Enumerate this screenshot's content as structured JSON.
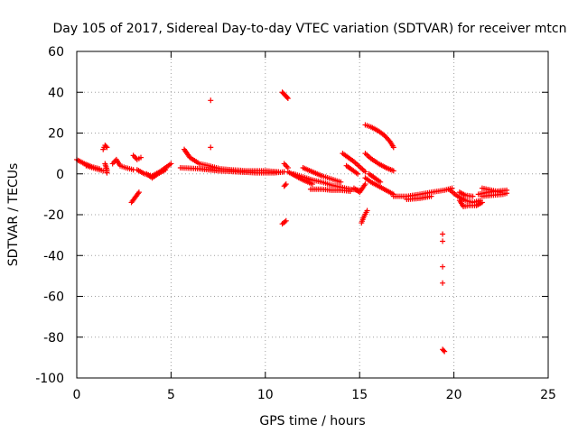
{
  "chart_data": {
    "type": "scatter",
    "title": "Day 105 of 2017, Sidereal Day-to-day VTEC variation (SDTVAR) for receiver mtcn",
    "xlabel": "GPS time / hours",
    "ylabel": "SDTVAR / TECUs",
    "xlim": [
      0,
      25
    ],
    "ylim": [
      -100,
      60
    ],
    "xticks": [
      0,
      5,
      10,
      15,
      20,
      25
    ],
    "yticks": [
      -100,
      -80,
      -60,
      -40,
      -20,
      0,
      20,
      40,
      60
    ],
    "grid": true,
    "marker": "+",
    "series": [
      {
        "name": "SDTVAR",
        "color": "#ff0000",
        "segments": [
          [
            [
              0.0,
              7
            ],
            [
              0.4,
              5
            ],
            [
              0.8,
              3.5
            ],
            [
              1.2,
              2.5
            ]
          ],
          [
            [
              0.5,
              4
            ],
            [
              1.0,
              2.5
            ],
            [
              1.4,
              1.5
            ]
          ],
          [
            [
              1.4,
              12
            ],
            [
              1.5,
              14
            ],
            [
              1.6,
              13
            ]
          ],
          [
            [
              1.5,
              5
            ],
            [
              1.6,
              2
            ],
            [
              1.6,
              0.5
            ]
          ],
          [
            [
              1.9,
              5
            ],
            [
              2.1,
              7
            ],
            [
              2.3,
              4
            ],
            [
              2.6,
              3
            ],
            [
              3.0,
              2
            ]
          ],
          [
            [
              2.9,
              -14
            ],
            [
              3.1,
              -11.5
            ],
            [
              3.3,
              -9
            ]
          ],
          [
            [
              3.0,
              9
            ],
            [
              3.2,
              7
            ],
            [
              3.4,
              8
            ]
          ],
          [
            [
              3.2,
              2
            ],
            [
              3.6,
              0
            ],
            [
              4.0,
              -1
            ],
            [
              4.4,
              1
            ],
            [
              4.7,
              3
            ],
            [
              5.0,
              5
            ]
          ],
          [
            [
              3.7,
              0
            ],
            [
              4.0,
              -2
            ],
            [
              4.3,
              0
            ],
            [
              4.7,
              2
            ]
          ],
          [
            [
              5.7,
              12
            ],
            [
              6.0,
              8
            ],
            [
              6.5,
              5
            ],
            [
              7.0,
              4
            ],
            [
              7.6,
              2.5
            ],
            [
              8.2,
              2
            ],
            [
              9.0,
              1.5
            ],
            [
              10.0,
              1.5
            ],
            [
              10.7,
              1
            ]
          ],
          [
            [
              5.5,
              3
            ],
            [
              6.5,
              2.5
            ],
            [
              7.5,
              1.5
            ],
            [
              8.5,
              1
            ],
            [
              9.5,
              0.5
            ],
            [
              10.5,
              0.5
            ],
            [
              11.0,
              1
            ]
          ],
          [
            [
              7.1,
              13
            ]
          ],
          [
            [
              7.1,
              36
            ]
          ],
          [
            [
              10.9,
              40
            ],
            [
              11.0,
              39
            ],
            [
              11.1,
              38
            ],
            [
              11.2,
              37
            ]
          ],
          [
            [
              10.9,
              -24.5
            ],
            [
              11.1,
              -23
            ]
          ],
          [
            [
              11.0,
              -6
            ],
            [
              11.1,
              -5
            ]
          ],
          [
            [
              11.0,
              5
            ],
            [
              11.2,
              3
            ]
          ],
          [
            [
              11.2,
              1
            ],
            [
              11.6,
              -1
            ],
            [
              12.0,
              -3
            ],
            [
              12.5,
              -5
            ]
          ],
          [
            [
              11.5,
              0
            ],
            [
              12.0,
              -1.5
            ],
            [
              12.5,
              -3
            ],
            [
              13.0,
              -4
            ],
            [
              13.5,
              -5.5
            ],
            [
              14.0,
              -6.5
            ],
            [
              14.5,
              -7.5
            ],
            [
              15.0,
              -8
            ]
          ],
          [
            [
              12.0,
              3
            ],
            [
              12.5,
              1
            ],
            [
              13.0,
              -1
            ],
            [
              13.5,
              -2.5
            ],
            [
              14.0,
              -4
            ]
          ],
          [
            [
              12.4,
              -7.5
            ],
            [
              13.0,
              -7.5
            ],
            [
              13.5,
              -8
            ],
            [
              14.0,
              -8
            ],
            [
              14.5,
              -8.5
            ]
          ],
          [
            [
              14.1,
              10
            ],
            [
              14.4,
              8
            ],
            [
              14.7,
              6
            ],
            [
              15.0,
              3.5
            ],
            [
              15.3,
              1
            ]
          ],
          [
            [
              14.3,
              4
            ],
            [
              14.6,
              2
            ],
            [
              14.9,
              0
            ]
          ],
          [
            [
              14.7,
              -7
            ],
            [
              15.0,
              -9
            ],
            [
              15.3,
              -5
            ]
          ],
          [
            [
              15.1,
              -24
            ],
            [
              15.2,
              -21.5
            ],
            [
              15.4,
              -18
            ]
          ],
          [
            [
              15.3,
              10
            ],
            [
              15.6,
              7.5
            ],
            [
              16.0,
              5
            ],
            [
              16.4,
              3
            ],
            [
              16.8,
              1.5
            ]
          ],
          [
            [
              15.3,
              -2
            ],
            [
              15.6,
              -4
            ],
            [
              16.0,
              -6
            ],
            [
              16.4,
              -8
            ],
            [
              16.8,
              -10
            ]
          ],
          [
            [
              15.5,
              0
            ],
            [
              15.8,
              -2
            ],
            [
              16.1,
              -4
            ]
          ],
          [
            [
              15.3,
              24
            ],
            [
              15.6,
              23
            ],
            [
              16.0,
              21
            ],
            [
              16.3,
              19
            ],
            [
              16.6,
              16
            ],
            [
              16.8,
              13
            ]
          ],
          [
            [
              16.8,
              -11
            ],
            [
              17.5,
              -11
            ],
            [
              18.2,
              -10
            ],
            [
              18.8,
              -9
            ],
            [
              19.5,
              -8
            ],
            [
              19.9,
              -7
            ]
          ],
          [
            [
              17.5,
              -12.5
            ],
            [
              18.2,
              -12
            ],
            [
              18.8,
              -11
            ]
          ],
          [
            [
              19.4,
              -29.5
            ]
          ],
          [
            [
              19.4,
              -33
            ]
          ],
          [
            [
              19.4,
              -45.5
            ]
          ],
          [
            [
              19.4,
              -53.5
            ]
          ],
          [
            [
              19.4,
              -86
            ],
            [
              19.5,
              -87
            ]
          ],
          [
            [
              19.8,
              -8
            ],
            [
              20.2,
              -11
            ],
            [
              20.6,
              -13
            ],
            [
              21.0,
              -14
            ],
            [
              21.4,
              -13
            ]
          ],
          [
            [
              20.3,
              -13
            ],
            [
              20.5,
              -16
            ],
            [
              20.8,
              -15.5
            ],
            [
              21.2,
              -15.5
            ],
            [
              21.5,
              -14
            ]
          ],
          [
            [
              20.3,
              -9
            ],
            [
              20.6,
              -10.5
            ],
            [
              21.0,
              -11
            ]
          ],
          [
            [
              21.3,
              -10
            ],
            [
              21.8,
              -9
            ],
            [
              22.3,
              -8.5
            ],
            [
              22.8,
              -8
            ]
          ],
          [
            [
              21.5,
              -11
            ],
            [
              22.0,
              -10.5
            ],
            [
              22.6,
              -10
            ],
            [
              22.8,
              -9.5
            ]
          ],
          [
            [
              21.5,
              -7
            ],
            [
              22.0,
              -8
            ],
            [
              22.5,
              -9
            ]
          ]
        ]
      }
    ]
  }
}
